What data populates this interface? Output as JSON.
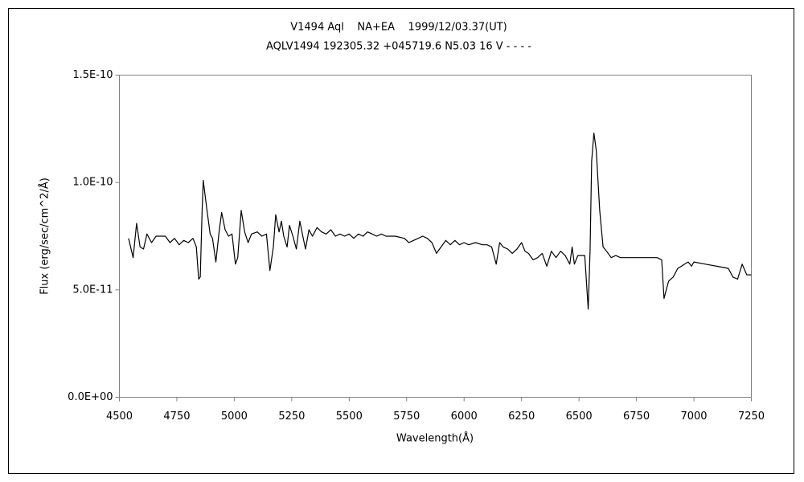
{
  "chart_data": {
    "type": "line",
    "title": "V1494 Aql    NA+EA    1999/12/03.37(UT)",
    "subtitle": "AQLV1494 192305.32 +045719.6 N5.03 16 V - - - -",
    "xlabel": "Wavelength(Å)",
    "ylabel": "Flux (erg/sec/cm^2/Å)",
    "color": "#000000",
    "xlim": [
      4500,
      7250
    ],
    "xticks": [
      4500,
      4750,
      5000,
      5250,
      5500,
      5750,
      6000,
      6250,
      6500,
      6750,
      7000,
      7250
    ],
    "ylim": [
      0,
      1.5e-10
    ],
    "yticks": [
      {
        "value": 0,
        "label": "0.0E+00"
      },
      {
        "value": 5e-11,
        "label": "5.0E-11"
      },
      {
        "value": 1e-10,
        "label": "1.0E-10"
      },
      {
        "value": 1.5e-10,
        "label": "1.5E-10"
      }
    ],
    "x": [
      4540,
      4560,
      4575,
      4590,
      4605,
      4620,
      4640,
      4660,
      4700,
      4720,
      4740,
      4760,
      4780,
      4800,
      4820,
      4835,
      4845,
      4852,
      4860,
      4865,
      4880,
      4895,
      4905,
      4920,
      4935,
      4945,
      4960,
      4975,
      4990,
      5005,
      5015,
      5030,
      5045,
      5060,
      5075,
      5100,
      5120,
      5140,
      5155,
      5170,
      5180,
      5195,
      5205,
      5215,
      5230,
      5240,
      5255,
      5270,
      5285,
      5300,
      5310,
      5325,
      5340,
      5360,
      5380,
      5400,
      5420,
      5440,
      5460,
      5480,
      5500,
      5520,
      5540,
      5560,
      5580,
      5600,
      5620,
      5640,
      5660,
      5700,
      5740,
      5760,
      5780,
      5800,
      5820,
      5840,
      5860,
      5880,
      5900,
      5920,
      5940,
      5960,
      5980,
      6000,
      6020,
      6050,
      6080,
      6100,
      6120,
      6140,
      6155,
      6170,
      6190,
      6210,
      6230,
      6250,
      6265,
      6280,
      6300,
      6320,
      6340,
      6360,
      6380,
      6400,
      6420,
      6440,
      6460,
      6470,
      6480,
      6495,
      6510,
      6525,
      6540,
      6548,
      6555,
      6565,
      6575,
      6590,
      6605,
      6620,
      6640,
      6660,
      6680,
      6700,
      6740,
      6780,
      6840,
      6860,
      6870,
      6880,
      6890,
      6910,
      6930,
      6960,
      6975,
      6990,
      7000,
      7050,
      7100,
      7150,
      7170,
      7190,
      7210,
      7230,
      7250
    ],
    "values": [
      7.4e-11,
      6.5e-11,
      8.1e-11,
      7e-11,
      6.9e-11,
      7.6e-11,
      7.2e-11,
      7.5e-11,
      7.5e-11,
      7.2e-11,
      7.4e-11,
      7.1e-11,
      7.3e-11,
      7.2e-11,
      7.4e-11,
      7e-11,
      5.5e-11,
      5.6e-11,
      8.7e-11,
      1.01e-10,
      8.8e-11,
      7.6e-11,
      7.4e-11,
      6.3e-11,
      7.8e-11,
      8.6e-11,
      7.8e-11,
      7.5e-11,
      7.6e-11,
      6.2e-11,
      6.5e-11,
      8.7e-11,
      7.7e-11,
      7.2e-11,
      7.6e-11,
      7.7e-11,
      7.5e-11,
      7.6e-11,
      5.9e-11,
      7e-11,
      8.5e-11,
      7.7e-11,
      8.2e-11,
      7.5e-11,
      7e-11,
      8e-11,
      7.5e-11,
      6.9e-11,
      8.2e-11,
      7.4e-11,
      6.9e-11,
      7.8e-11,
      7.5e-11,
      7.9e-11,
      7.7e-11,
      7.6e-11,
      7.8e-11,
      7.5e-11,
      7.6e-11,
      7.5e-11,
      7.6e-11,
      7.4e-11,
      7.6e-11,
      7.5e-11,
      7.7e-11,
      7.6e-11,
      7.5e-11,
      7.6e-11,
      7.5e-11,
      7.5e-11,
      7.4e-11,
      7.2e-11,
      7.3e-11,
      7.4e-11,
      7.5e-11,
      7.4e-11,
      7.2e-11,
      6.7e-11,
      7e-11,
      7.3e-11,
      7.1e-11,
      7.3e-11,
      7.1e-11,
      7.2e-11,
      7.1e-11,
      7.2e-11,
      7.1e-11,
      7.1e-11,
      7e-11,
      6.2e-11,
      7.2e-11,
      7e-11,
      6.9e-11,
      6.7e-11,
      6.9e-11,
      7.2e-11,
      6.8e-11,
      6.7e-11,
      6.4e-11,
      6.5e-11,
      6.7e-11,
      6.1e-11,
      6.8e-11,
      6.5e-11,
      6.8e-11,
      6.6e-11,
      6.2e-11,
      7e-11,
      6.2e-11,
      6.6e-11,
      6.6e-11,
      6.6e-11,
      4.1e-11,
      6.8e-11,
      1.1e-10,
      1.23e-10,
      1.15e-10,
      8.7e-11,
      7e-11,
      6.8e-11,
      6.5e-11,
      6.6e-11,
      6.5e-11,
      6.5e-11,
      6.5e-11,
      6.5e-11,
      6.5e-11,
      6.4e-11,
      4.6e-11,
      5e-11,
      5.4e-11,
      5.6e-11,
      6e-11,
      6.2e-11,
      6.3e-11,
      6.1e-11,
      6.3e-11,
      6.2e-11,
      6.1e-11,
      6e-11,
      5.6e-11,
      5.5e-11,
      6.2e-11,
      5.7e-11,
      5.7e-11
    ]
  }
}
